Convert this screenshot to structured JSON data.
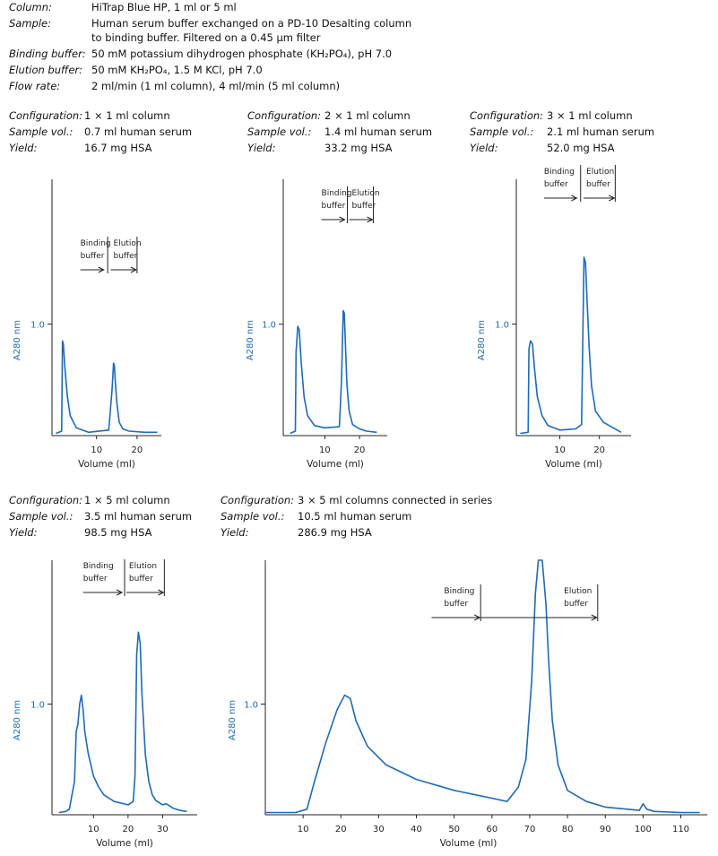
{
  "header": {
    "rows": [
      {
        "key": "Column:",
        "value": "HiTrap Blue HP, 1 ml or 5 ml"
      },
      {
        "key": "Sample:",
        "value": "Human serum buffer exchanged on a PD-10 Desalting column",
        "value2": "to binding buffer. Filtered on a 0.45 µm filter"
      },
      {
        "key": "Binding buffer:",
        "value": "50 mM potassium dihydrogen phosphate (KH₂PO₄), pH 7.0"
      },
      {
        "key": "Elution buffer:",
        "value": "50 mM KH₂PO₄, 1.5 M KCl, pH 7.0"
      },
      {
        "key": "Flow rate:",
        "value": "2 ml/min (1 ml column), 4 ml/min (5 ml column)"
      }
    ]
  },
  "labels": {
    "configuration": "Configuration:",
    "sample_vol": "Sample vol.:",
    "yield": "Yield:",
    "binding1": "Binding",
    "binding2": "buffer",
    "elution1": "Elution",
    "elution2": "buffer"
  },
  "colors": {
    "curve": "#1f6ab5",
    "axis": "#222222",
    "ylabel": "#1f6ab5"
  },
  "chart_data": [
    {
      "type": "line",
      "configuration": "1 × 1 ml column",
      "sample_vol": "0.7 ml human serum",
      "yield": "16.7 mg HSA",
      "xlabel": "Volume (ml)",
      "ylabel": "A280 nm",
      "xlim": [
        -1,
        26
      ],
      "ylim": [
        0,
        2.3
      ],
      "xticks": [
        10,
        20
      ],
      "yticks": [
        1.0
      ],
      "binding_span": [
        6,
        12
      ],
      "elution_span": [
        13.5,
        20
      ],
      "x": [
        0,
        1.4,
        1.6,
        1.8,
        2.2,
        2.8,
        3.5,
        5,
        8,
        13,
        13.8,
        14.2,
        14.4,
        14.6,
        15,
        15.6,
        16.5,
        18,
        22,
        25
      ],
      "y": [
        0.02,
        0.04,
        0.85,
        0.82,
        0.6,
        0.35,
        0.18,
        0.07,
        0.03,
        0.05,
        0.4,
        0.65,
        0.63,
        0.5,
        0.3,
        0.12,
        0.06,
        0.04,
        0.03,
        0.03
      ]
    },
    {
      "type": "line",
      "configuration": "2 × 1 ml column",
      "sample_vol": "1.4 ml human serum",
      "yield": "33.2 mg HSA",
      "xlabel": "Volume (ml)",
      "ylabel": "A280 nm",
      "xlim": [
        -2,
        28
      ],
      "ylim": [
        0,
        2.3
      ],
      "xticks": [
        10,
        20
      ],
      "yticks": [
        1.0
      ],
      "binding_span": [
        9,
        16
      ],
      "elution_span": [
        17,
        24
      ],
      "x": [
        0,
        1.5,
        1.7,
        2.2,
        2.6,
        3.2,
        4,
        5,
        7,
        10,
        14.2,
        14.8,
        15.3,
        15.6,
        15.9,
        16.4,
        17,
        18,
        20,
        22,
        25
      ],
      "y": [
        0.02,
        0.04,
        0.75,
        0.98,
        0.95,
        0.65,
        0.35,
        0.18,
        0.09,
        0.07,
        0.08,
        0.5,
        1.12,
        1.1,
        0.85,
        0.45,
        0.22,
        0.1,
        0.06,
        0.04,
        0.03
      ]
    },
    {
      "type": "line",
      "configuration": "3 × 1 ml column",
      "sample_vol": "2.1 ml human serum",
      "yield": "52.0 mg HSA",
      "xlabel": "Volume (ml)",
      "ylabel": "A280 nm",
      "xlim": [
        -1,
        28
      ],
      "ylim": [
        0,
        2.3
      ],
      "xticks": [
        10,
        20
      ],
      "yticks": [
        1.0
      ],
      "binding_span": [
        6,
        14.5
      ],
      "elution_span": [
        16,
        24
      ],
      "x": [
        0,
        2,
        2.2,
        2.6,
        3.1,
        3.6,
        4.3,
        5.5,
        7,
        10,
        14,
        15.5,
        16.1,
        16.5,
        16.9,
        17.4,
        18,
        19,
        21,
        23,
        24.5,
        25.5
      ],
      "y": [
        0.02,
        0.03,
        0.78,
        0.85,
        0.82,
        0.6,
        0.35,
        0.18,
        0.09,
        0.05,
        0.06,
        0.1,
        1.6,
        1.55,
        1.2,
        0.8,
        0.45,
        0.22,
        0.12,
        0.08,
        0.05,
        0.03
      ]
    },
    {
      "type": "line",
      "configuration": "1 × 5 ml column",
      "sample_vol": "3.5 ml human serum",
      "yield": "98.5 mg HSA",
      "xlabel": "Volume (ml)",
      "ylabel": "A280 nm",
      "xlim": [
        -2,
        40
      ],
      "ylim": [
        0,
        2.3
      ],
      "xticks": [
        10,
        20,
        30
      ],
      "yticks": [
        1.0
      ],
      "binding_span": [
        7,
        18.5
      ],
      "elution_span": [
        19.5,
        30.5
      ],
      "x": [
        0,
        2,
        3,
        4.5,
        5,
        5.5,
        6,
        6.5,
        7,
        7.5,
        8.5,
        10,
        11.5,
        13,
        16,
        20,
        21.5,
        22,
        22.5,
        23,
        23.5,
        24,
        25,
        26,
        27,
        28,
        30,
        31,
        33,
        35,
        37
      ],
      "y": [
        0.02,
        0.03,
        0.05,
        0.3,
        0.75,
        0.82,
        1.0,
        1.08,
        0.95,
        0.75,
        0.55,
        0.35,
        0.25,
        0.18,
        0.12,
        0.09,
        0.12,
        0.35,
        1.45,
        1.65,
        1.55,
        1.1,
        0.55,
        0.3,
        0.18,
        0.13,
        0.09,
        0.1,
        0.06,
        0.04,
        0.03
      ]
    },
    {
      "type": "line",
      "configuration": "3 × 5 ml columns connected in series",
      "sample_vol": "10.5 ml human serum",
      "yield": "286.9 mg HSA",
      "xlabel": "Volume (ml)",
      "ylabel": "A280 nm",
      "xlim": [
        0,
        117
      ],
      "ylim": [
        0,
        2.3
      ],
      "xticks": [
        10,
        20,
        30,
        40,
        50,
        60,
        70,
        80,
        90,
        100,
        110
      ],
      "yticks": [
        1.0
      ],
      "binding_span": [
        44,
        57
      ],
      "elution_span": [
        57,
        88
      ],
      "x": [
        0,
        8,
        11,
        13,
        16,
        19,
        21,
        22.5,
        24,
        27,
        32,
        40,
        50,
        60,
        64,
        67,
        69,
        70.5,
        71.5,
        72.3,
        73.3,
        74.3,
        75,
        76,
        77.5,
        80,
        85,
        90,
        99,
        100,
        101,
        103,
        110,
        115
      ],
      "y": [
        0.02,
        0.02,
        0.05,
        0.3,
        0.65,
        0.95,
        1.08,
        1.05,
        0.85,
        0.62,
        0.45,
        0.32,
        0.22,
        0.15,
        0.12,
        0.25,
        0.5,
        1.2,
        2.0,
        2.3,
        2.3,
        1.9,
        1.4,
        0.85,
        0.45,
        0.22,
        0.12,
        0.07,
        0.04,
        0.1,
        0.05,
        0.03,
        0.02,
        0.02
      ]
    }
  ]
}
